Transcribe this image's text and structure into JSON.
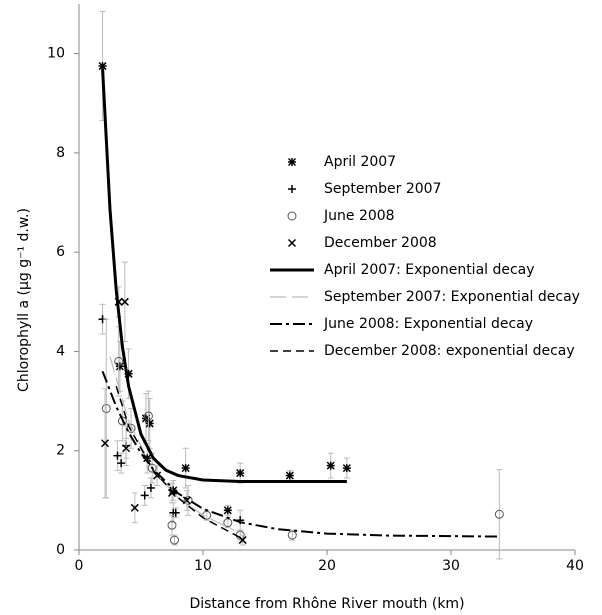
{
  "chart_data": {
    "type": "scatter",
    "xlabel": "Distance from Rhône River mouth (km)",
    "ylabel": "Chlorophyll a (µg g⁻¹ d.w.)",
    "xlim": [
      0,
      40
    ],
    "xticks": [
      0,
      10,
      20,
      30,
      40
    ],
    "ylim": [
      0,
      11
    ],
    "yticks": [
      0,
      2,
      4,
      6,
      8,
      10
    ],
    "legend": "center-right",
    "series": [
      {
        "name": "April 2007",
        "type": "scatter",
        "marker": "asterisk",
        "color": "#000000",
        "x": [
          1.9,
          3.3,
          4.0,
          5.4,
          5.7,
          5.5,
          7.6,
          8.6,
          12.0,
          13.0,
          17.0,
          20.3,
          21.6
        ],
        "values": [
          9.75,
          3.7,
          3.55,
          2.65,
          2.55,
          1.85,
          1.2,
          1.65,
          0.8,
          1.55,
          1.5,
          1.7,
          1.65
        ],
        "errors": [
          1.1,
          0.5,
          0.5,
          0.5,
          0.5,
          0.3,
          0.2,
          0.4,
          0.1,
          0.2,
          0.1,
          0.25,
          0.2
        ]
      },
      {
        "name": "September 2007",
        "type": "scatter",
        "marker": "plus",
        "color": "#000000",
        "x": [
          1.9,
          3.1,
          3.4,
          3.8,
          5.3,
          5.8,
          7.6,
          7.8,
          13.0
        ],
        "values": [
          4.65,
          1.9,
          1.75,
          2.1,
          1.1,
          1.25,
          0.75,
          0.75,
          0.6
        ],
        "errors": [
          0.3,
          0.3,
          0.2,
          0.4,
          0.2,
          0.2,
          0.2,
          0.1,
          0.2
        ]
      },
      {
        "name": "June 2008",
        "type": "scatter",
        "marker": "circle",
        "color": "#555555",
        "x": [
          2.2,
          3.2,
          3.5,
          4.2,
          5.6,
          5.9,
          7.5,
          7.7,
          8.8,
          10.3,
          12.0,
          13.0,
          17.2,
          33.9
        ],
        "values": [
          2.85,
          3.8,
          2.6,
          2.45,
          2.7,
          1.65,
          0.5,
          0.2,
          1.0,
          0.7,
          0.55,
          0.3,
          0.3,
          0.72
        ],
        "errors": [
          1.8,
          0.7,
          0.4,
          0.4,
          0.5,
          0.3,
          0.2,
          0.1,
          0.3,
          0.1,
          0.1,
          0.1,
          0.1,
          0.9
        ]
      },
      {
        "name": "December 2008",
        "type": "scatter",
        "marker": "cross",
        "color": "#000000",
        "x": [
          2.1,
          3.2,
          3.7,
          3.8,
          4.5,
          6.3,
          7.5,
          8.7,
          13.2
        ],
        "values": [
          2.15,
          5.0,
          5.0,
          2.05,
          0.85,
          1.5,
          1.15,
          1.0,
          0.2
        ],
        "errors": [
          1.1,
          0.3,
          0.8,
          0.2,
          0.3,
          0.2,
          0.2,
          0.2,
          0.1
        ]
      },
      {
        "name": "April 2007: Exponential decay",
        "type": "line",
        "style": "solid-thick",
        "color": "#000000",
        "x": [
          1.9,
          2.5,
          3,
          3.5,
          4,
          5,
          6,
          7,
          8,
          10,
          13,
          16,
          21.6
        ],
        "values": [
          9.7,
          6.86,
          5.24,
          4.1,
          3.3,
          2.33,
          1.85,
          1.61,
          1.5,
          1.41,
          1.38,
          1.38,
          1.38
        ]
      },
      {
        "name": "September 2007: Exponential decay",
        "type": "line",
        "style": "long-dash",
        "color": "#bbbbbb",
        "x": [
          2.5,
          4,
          6,
          8,
          10,
          12.5
        ],
        "values": [
          3.9,
          2.6,
          1.6,
          1.05,
          0.7,
          0.4
        ]
      },
      {
        "name": "June 2008: Exponential decay",
        "type": "line",
        "style": "dash-dot",
        "color": "#000000",
        "x": [
          1.9,
          3,
          4,
          5,
          6,
          8,
          10,
          13,
          16,
          20,
          25,
          30,
          34
        ],
        "values": [
          3.6,
          2.89,
          2.37,
          1.95,
          1.62,
          1.14,
          0.83,
          0.56,
          0.42,
          0.33,
          0.29,
          0.28,
          0.27
        ]
      },
      {
        "name": "December 2008: exponential decay",
        "type": "line",
        "style": "dashed",
        "color": "#000000",
        "x": [
          3,
          4,
          6,
          8,
          10,
          13
        ],
        "values": [
          3.3,
          2.5,
          1.6,
          1.05,
          0.65,
          0.25
        ]
      }
    ]
  }
}
